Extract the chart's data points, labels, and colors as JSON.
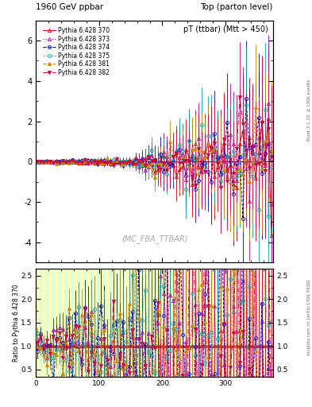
{
  "title_left": "1960 GeV ppbar",
  "title_right": "Top (parton level)",
  "plot_title": "pT (ttbar) (Mtt > 450)",
  "watermark": "(MC_FBA_TTBAR)",
  "right_label": "Rivet 3.1.10, ≥ 100k events",
  "arxiv_label": "mcplots.cern.ch [arXiv:1306.3436]",
  "ylabel_ratio": "Ratio to Pythia 6.428 370",
  "xlim": [
    0,
    375
  ],
  "ylim_main": [
    -5,
    7
  ],
  "ylim_ratio": [
    0.35,
    2.65
  ],
  "yticks_main": [
    -4,
    -2,
    0,
    2,
    4,
    6
  ],
  "yticks_ratio": [
    0.5,
    1.0,
    1.5,
    2.0,
    2.5
  ],
  "xticks": [
    0,
    100,
    200,
    300
  ],
  "series": [
    {
      "label": "Pythia 6.428 370",
      "color": "#cc0000",
      "linestyle": "-",
      "marker": "^",
      "fillstyle": "none",
      "markersize": 3
    },
    {
      "label": "Pythia 6.428 373",
      "color": "#aa00aa",
      "linestyle": ":",
      "marker": "^",
      "fillstyle": "none",
      "markersize": 3
    },
    {
      "label": "Pythia 6.428 374",
      "color": "#0000cc",
      "linestyle": "--",
      "marker": "o",
      "fillstyle": "none",
      "markersize": 3
    },
    {
      "label": "Pythia 6.428 375",
      "color": "#00aaaa",
      "linestyle": ":",
      "marker": "o",
      "fillstyle": "none",
      "markersize": 3
    },
    {
      "label": "Pythia 6.428 381",
      "color": "#cc8800",
      "linestyle": "--",
      "marker": "^",
      "fillstyle": "full",
      "markersize": 3
    },
    {
      "label": "Pythia 6.428 382",
      "color": "#cc0044",
      "linestyle": "-.",
      "marker": "v",
      "fillstyle": "full",
      "markersize": 3
    }
  ],
  "band_colors": [
    "#ffff99",
    "#ccffcc"
  ],
  "background_color": "#ffffff"
}
